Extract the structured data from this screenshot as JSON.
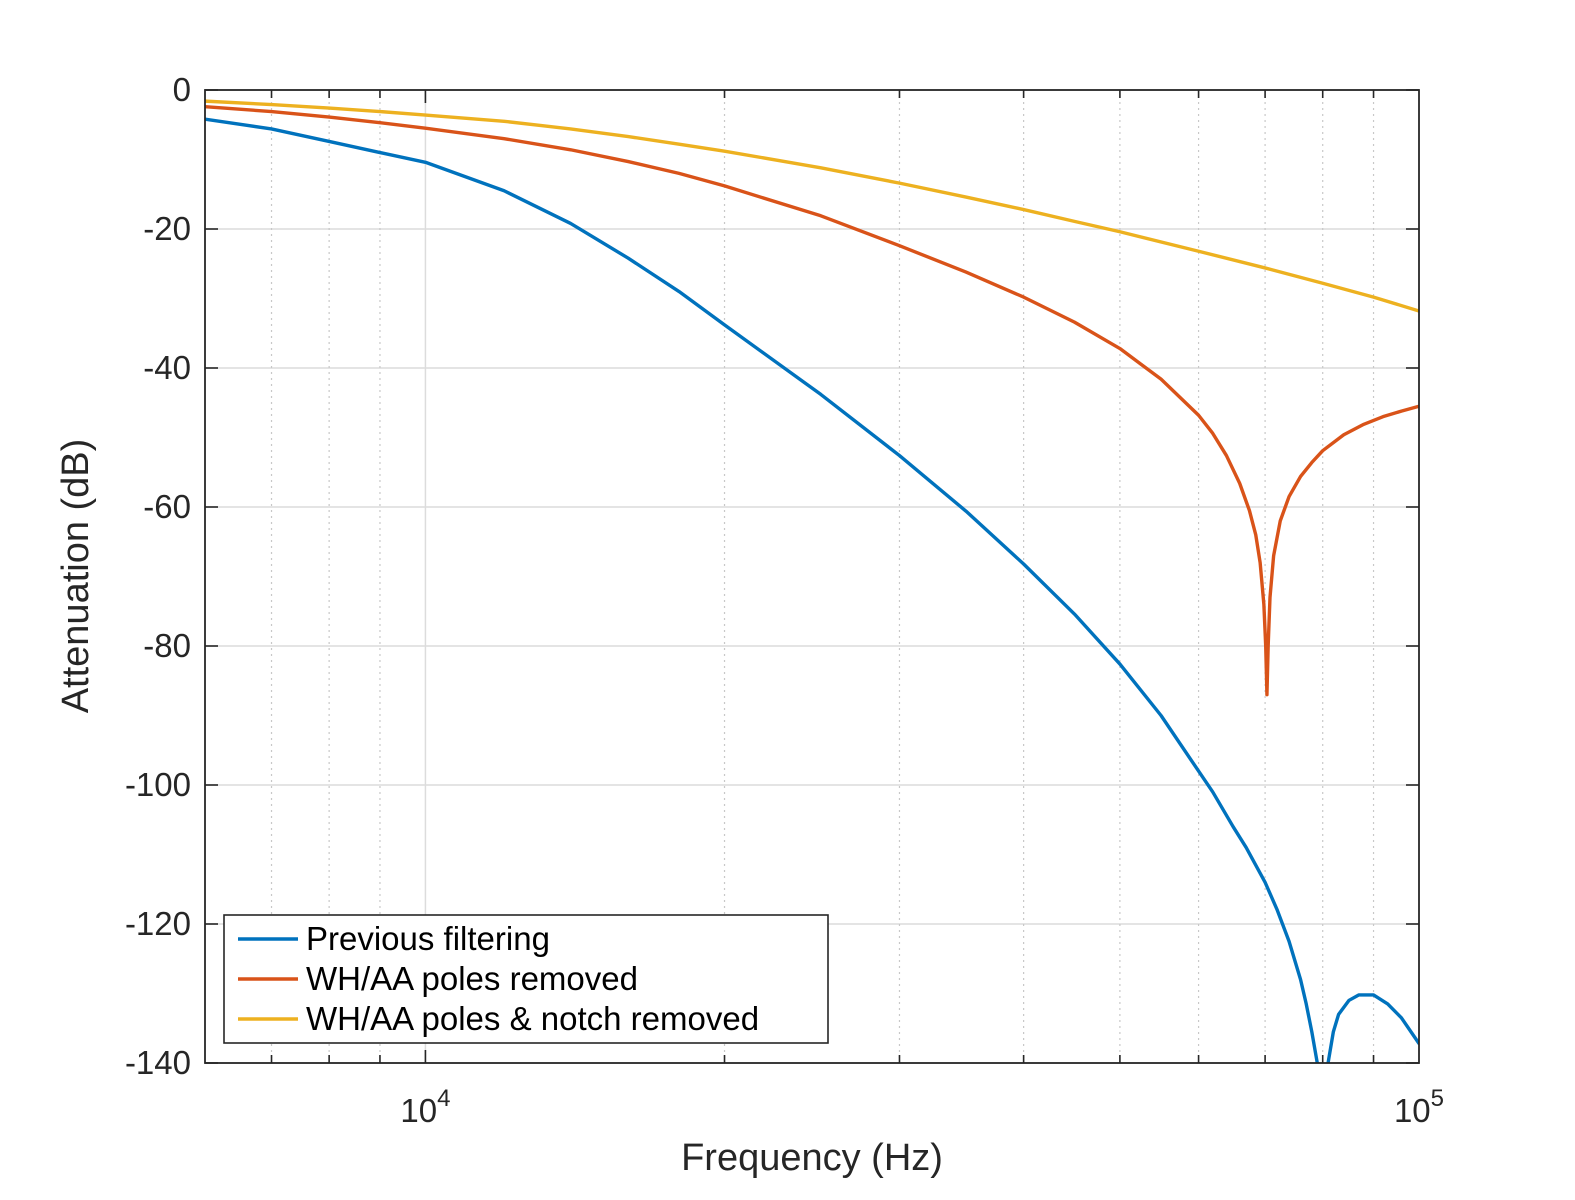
{
  "chart_data": {
    "type": "line",
    "xscale": "log",
    "xlabel": "Frequency (Hz)",
    "ylabel": "Attenuation (dB)",
    "xlim": [
      6000,
      100000
    ],
    "ylim": [
      -140,
      0
    ],
    "xticks": [
      {
        "value": 10000,
        "base": "10",
        "exp": "4"
      },
      {
        "value": 100000,
        "base": "10",
        "exp": "5"
      }
    ],
    "yticks": [
      {
        "value": 0,
        "label": "0"
      },
      {
        "value": -20,
        "label": "-20"
      },
      {
        "value": -40,
        "label": "-40"
      },
      {
        "value": -60,
        "label": "-60"
      },
      {
        "value": -80,
        "label": "-80"
      },
      {
        "value": -100,
        "label": "-100"
      },
      {
        "value": -120,
        "label": "-120"
      },
      {
        "value": -140,
        "label": "-140"
      }
    ],
    "grid": true,
    "legend_location": "bottom-left",
    "series": [
      {
        "name": "Previous filtering",
        "color": "#0072BD",
        "points": [
          [
            6000,
            -4.2
          ],
          [
            7000,
            -5.6
          ],
          [
            8000,
            -7.4
          ],
          [
            9000,
            -9.0
          ],
          [
            10000,
            -10.4
          ],
          [
            12000,
            -14.5
          ],
          [
            14000,
            -19.2
          ],
          [
            16000,
            -24.2
          ],
          [
            18000,
            -29.0
          ],
          [
            20000,
            -33.8
          ],
          [
            25000,
            -43.8
          ],
          [
            30000,
            -52.6
          ],
          [
            35000,
            -60.6
          ],
          [
            40000,
            -68.2
          ],
          [
            45000,
            -75.4
          ],
          [
            50000,
            -82.6
          ],
          [
            55000,
            -90.0
          ],
          [
            60000,
            -98.0
          ],
          [
            62000,
            -101.0
          ],
          [
            65000,
            -106.0
          ],
          [
            67000,
            -109.0
          ],
          [
            70000,
            -114.0
          ],
          [
            72000,
            -118.0
          ],
          [
            74000,
            -122.5
          ],
          [
            76000,
            -128.0
          ],
          [
            77000,
            -131.5
          ],
          [
            78000,
            -135.5
          ],
          [
            79000,
            -140.0
          ]
        ],
        "points_after_gap": [
          [
            81000,
            -140.0
          ],
          [
            82000,
            -135.5
          ],
          [
            83000,
            -133.0
          ],
          [
            85000,
            -131.0
          ],
          [
            87000,
            -130.2
          ],
          [
            90000,
            -130.2
          ],
          [
            93000,
            -131.5
          ],
          [
            96000,
            -133.5
          ],
          [
            100000,
            -137.2
          ]
        ]
      },
      {
        "name": "WH/AA poles removed",
        "color": "#D95319",
        "points": [
          [
            6000,
            -2.4
          ],
          [
            7000,
            -3.1
          ],
          [
            8000,
            -3.9
          ],
          [
            9000,
            -4.7
          ],
          [
            10000,
            -5.5
          ],
          [
            12000,
            -7.0
          ],
          [
            14000,
            -8.6
          ],
          [
            16000,
            -10.3
          ],
          [
            18000,
            -12.0
          ],
          [
            20000,
            -13.8
          ],
          [
            25000,
            -18.1
          ],
          [
            30000,
            -22.4
          ],
          [
            35000,
            -26.2
          ],
          [
            40000,
            -29.8
          ],
          [
            45000,
            -33.4
          ],
          [
            50000,
            -37.2
          ],
          [
            55000,
            -41.6
          ],
          [
            60000,
            -46.8
          ],
          [
            62000,
            -49.4
          ],
          [
            64000,
            -52.6
          ],
          [
            66000,
            -56.6
          ],
          [
            67500,
            -60.5
          ],
          [
            68500,
            -64.0
          ],
          [
            69200,
            -68.0
          ],
          [
            69800,
            -74.0
          ],
          [
            70100,
            -80.0
          ],
          [
            70300,
            -87.0
          ],
          [
            70500,
            -80.0
          ],
          [
            70800,
            -73.0
          ],
          [
            71400,
            -67.0
          ],
          [
            72500,
            -62.0
          ],
          [
            74000,
            -58.5
          ],
          [
            76000,
            -55.6
          ],
          [
            78000,
            -53.6
          ],
          [
            80000,
            -51.9
          ],
          [
            84000,
            -49.6
          ],
          [
            88000,
            -48.1
          ],
          [
            92000,
            -47.0
          ],
          [
            96000,
            -46.2
          ],
          [
            100000,
            -45.5
          ]
        ]
      },
      {
        "name": "WH/AA poles & notch removed",
        "color": "#EDB120",
        "points": [
          [
            6000,
            -1.6
          ],
          [
            7000,
            -2.1
          ],
          [
            8000,
            -2.6
          ],
          [
            9000,
            -3.1
          ],
          [
            10000,
            -3.6
          ],
          [
            12000,
            -4.5
          ],
          [
            14000,
            -5.6
          ],
          [
            16000,
            -6.7
          ],
          [
            18000,
            -7.8
          ],
          [
            20000,
            -8.8
          ],
          [
            25000,
            -11.2
          ],
          [
            30000,
            -13.4
          ],
          [
            35000,
            -15.4
          ],
          [
            40000,
            -17.2
          ],
          [
            45000,
            -18.9
          ],
          [
            50000,
            -20.4
          ],
          [
            60000,
            -23.2
          ],
          [
            70000,
            -25.6
          ],
          [
            80000,
            -27.8
          ],
          [
            90000,
            -29.8
          ],
          [
            100000,
            -31.8
          ]
        ]
      }
    ]
  }
}
